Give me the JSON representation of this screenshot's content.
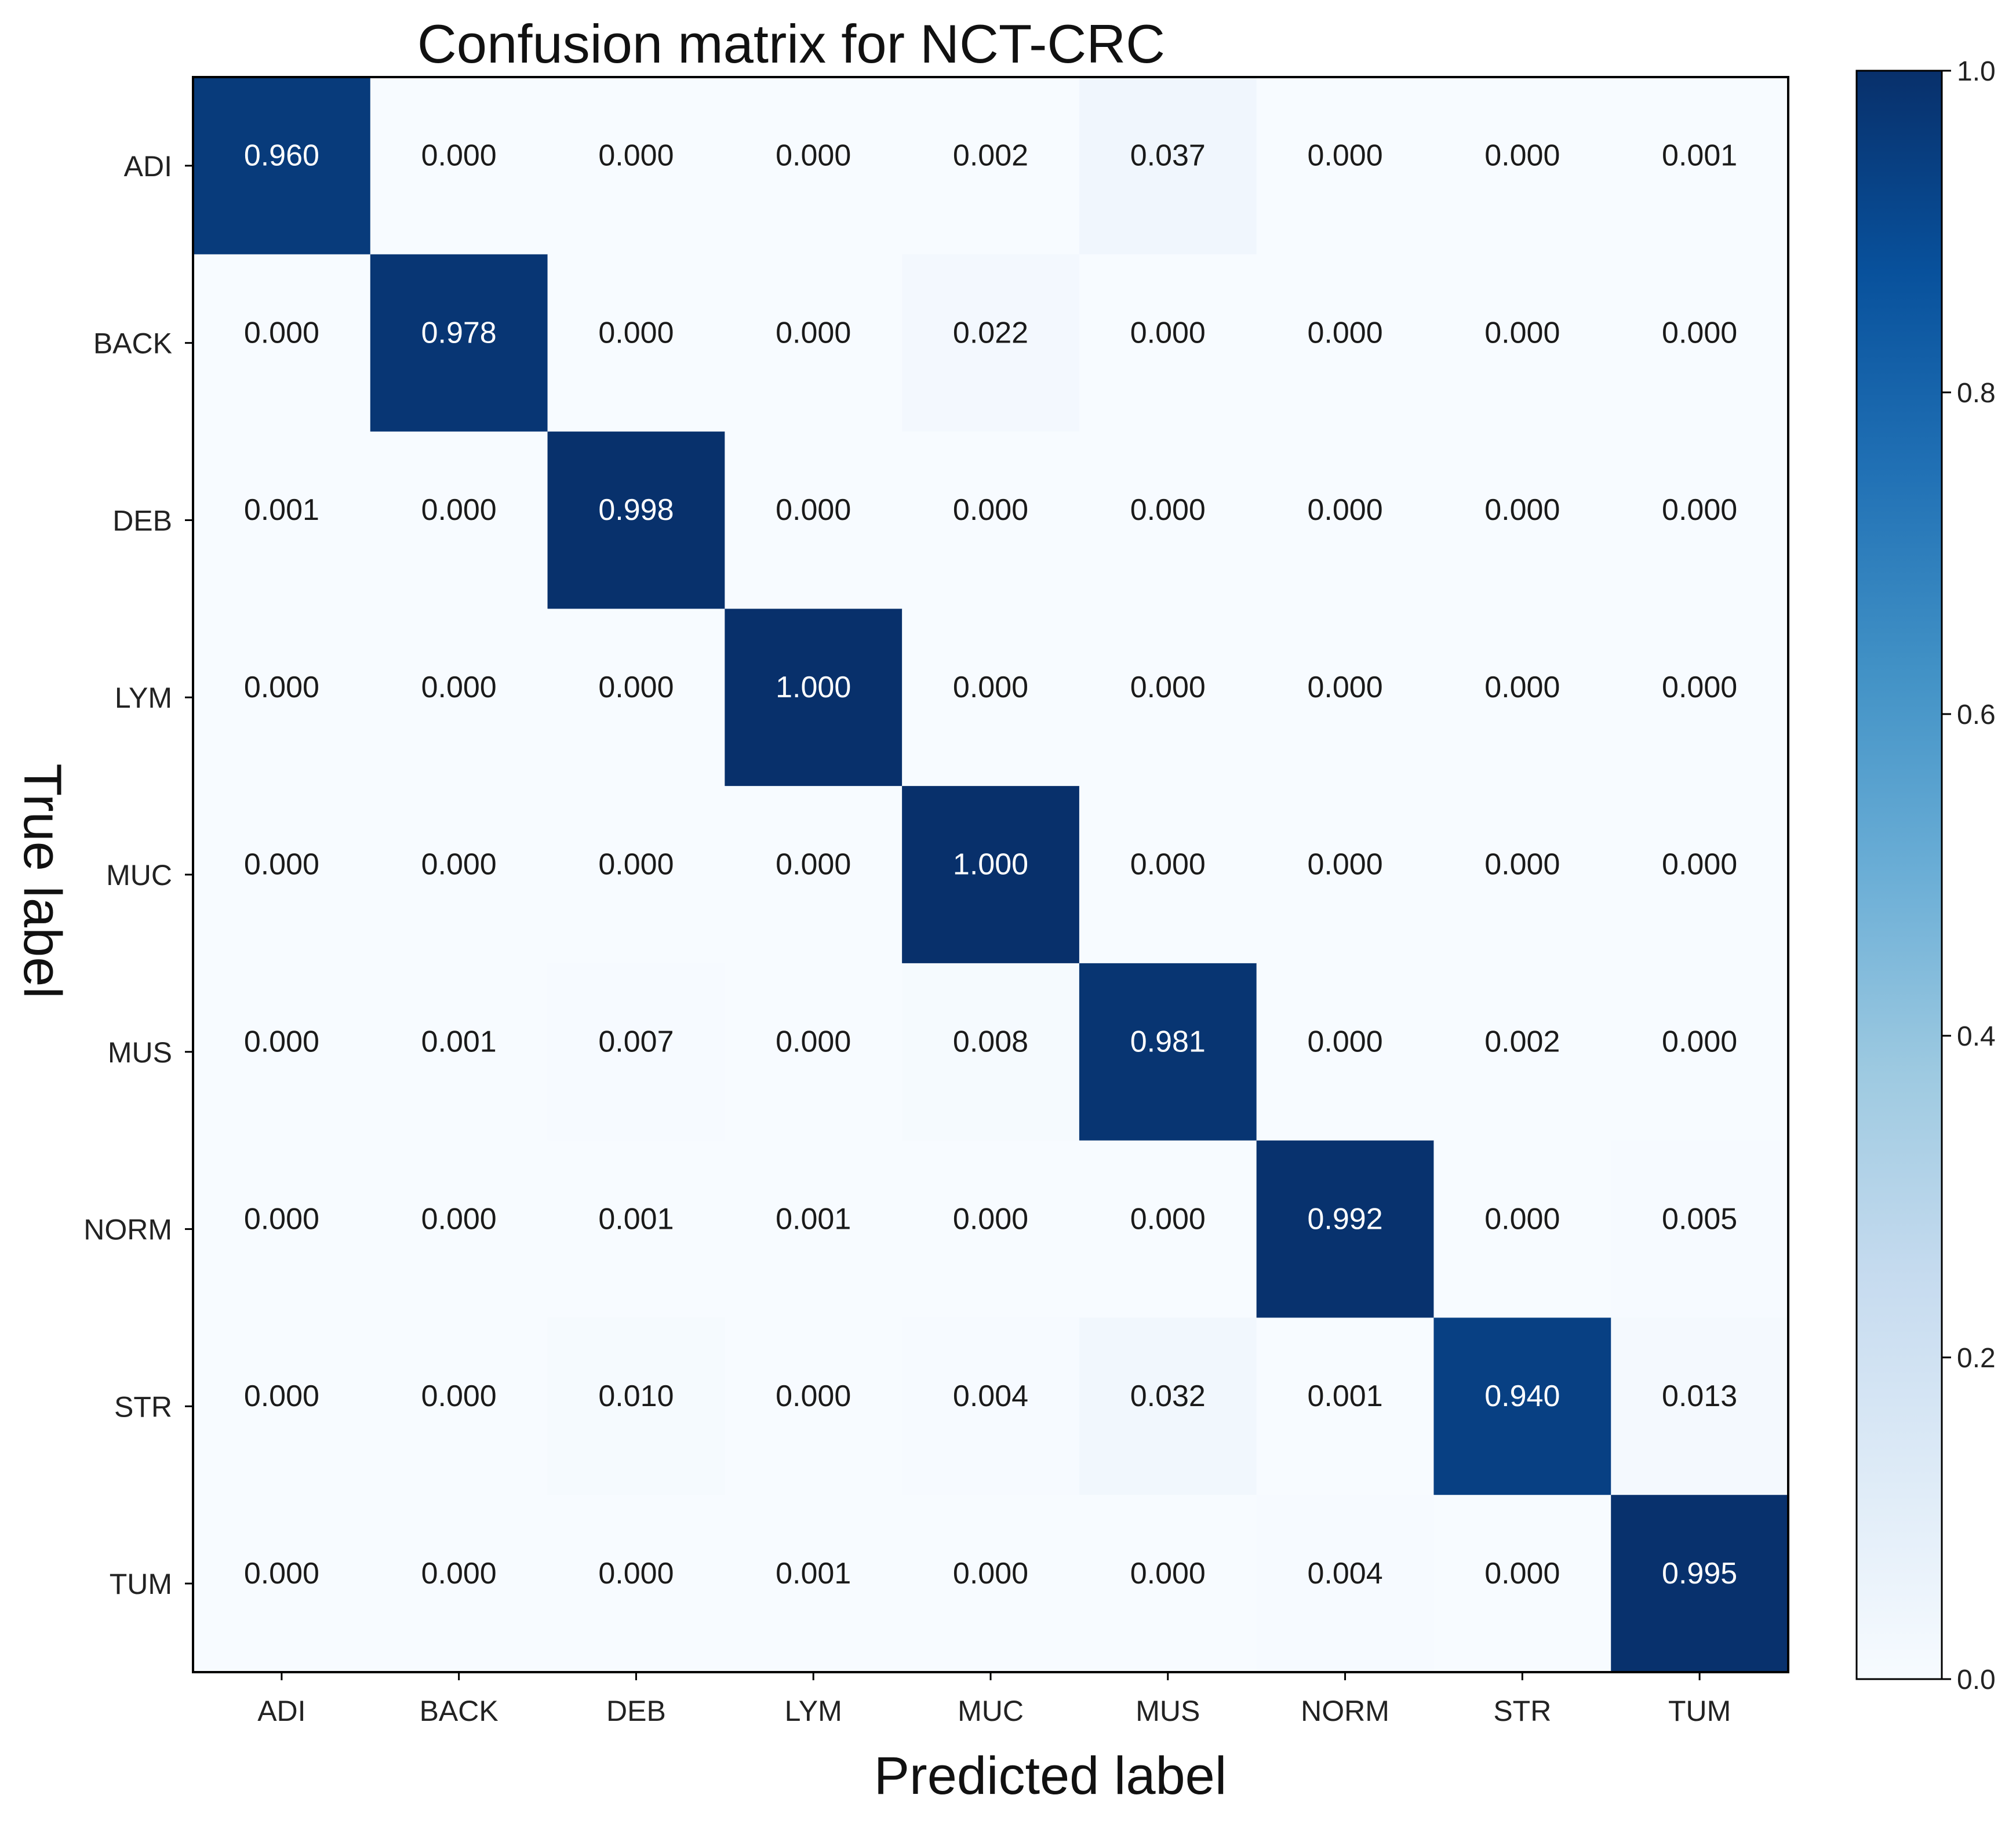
{
  "chart_data": {
    "type": "heatmap",
    "title": "Confusion matrix for NCT-CRC",
    "xlabel": "Predicted label",
    "ylabel": "True label",
    "x_categories": [
      "ADI",
      "BACK",
      "DEB",
      "LYM",
      "MUC",
      "MUS",
      "NORM",
      "STR",
      "TUM"
    ],
    "y_categories": [
      "ADI",
      "BACK",
      "DEB",
      "LYM",
      "MUC",
      "MUS",
      "NORM",
      "STR",
      "TUM"
    ],
    "values": [
      [
        0.96,
        0.0,
        0.0,
        0.0,
        0.002,
        0.037,
        0.0,
        0.0,
        0.001
      ],
      [
        0.0,
        0.978,
        0.0,
        0.0,
        0.022,
        0.0,
        0.0,
        0.0,
        0.0
      ],
      [
        0.001,
        0.0,
        0.998,
        0.0,
        0.0,
        0.0,
        0.0,
        0.0,
        0.0
      ],
      [
        0.0,
        0.0,
        0.0,
        1.0,
        0.0,
        0.0,
        0.0,
        0.0,
        0.0
      ],
      [
        0.0,
        0.0,
        0.0,
        0.0,
        1.0,
        0.0,
        0.0,
        0.0,
        0.0
      ],
      [
        0.0,
        0.001,
        0.007,
        0.0,
        0.008,
        0.981,
        0.0,
        0.002,
        0.0
      ],
      [
        0.0,
        0.0,
        0.001,
        0.001,
        0.0,
        0.0,
        0.992,
        0.0,
        0.005
      ],
      [
        0.0,
        0.0,
        0.01,
        0.0,
        0.004,
        0.032,
        0.001,
        0.94,
        0.013
      ],
      [
        0.0,
        0.0,
        0.0,
        0.001,
        0.0,
        0.0,
        0.004,
        0.0,
        0.995
      ]
    ],
    "value_format_decimals": 3,
    "colormap": "Blues",
    "colorbar": {
      "range": [
        0.0,
        1.0
      ],
      "ticks": [
        0.0,
        0.2,
        0.4,
        0.6,
        0.8,
        1.0
      ],
      "tick_labels": [
        "0.0",
        "0.2",
        "0.4",
        "0.6",
        "0.8",
        "1.0"
      ]
    }
  }
}
